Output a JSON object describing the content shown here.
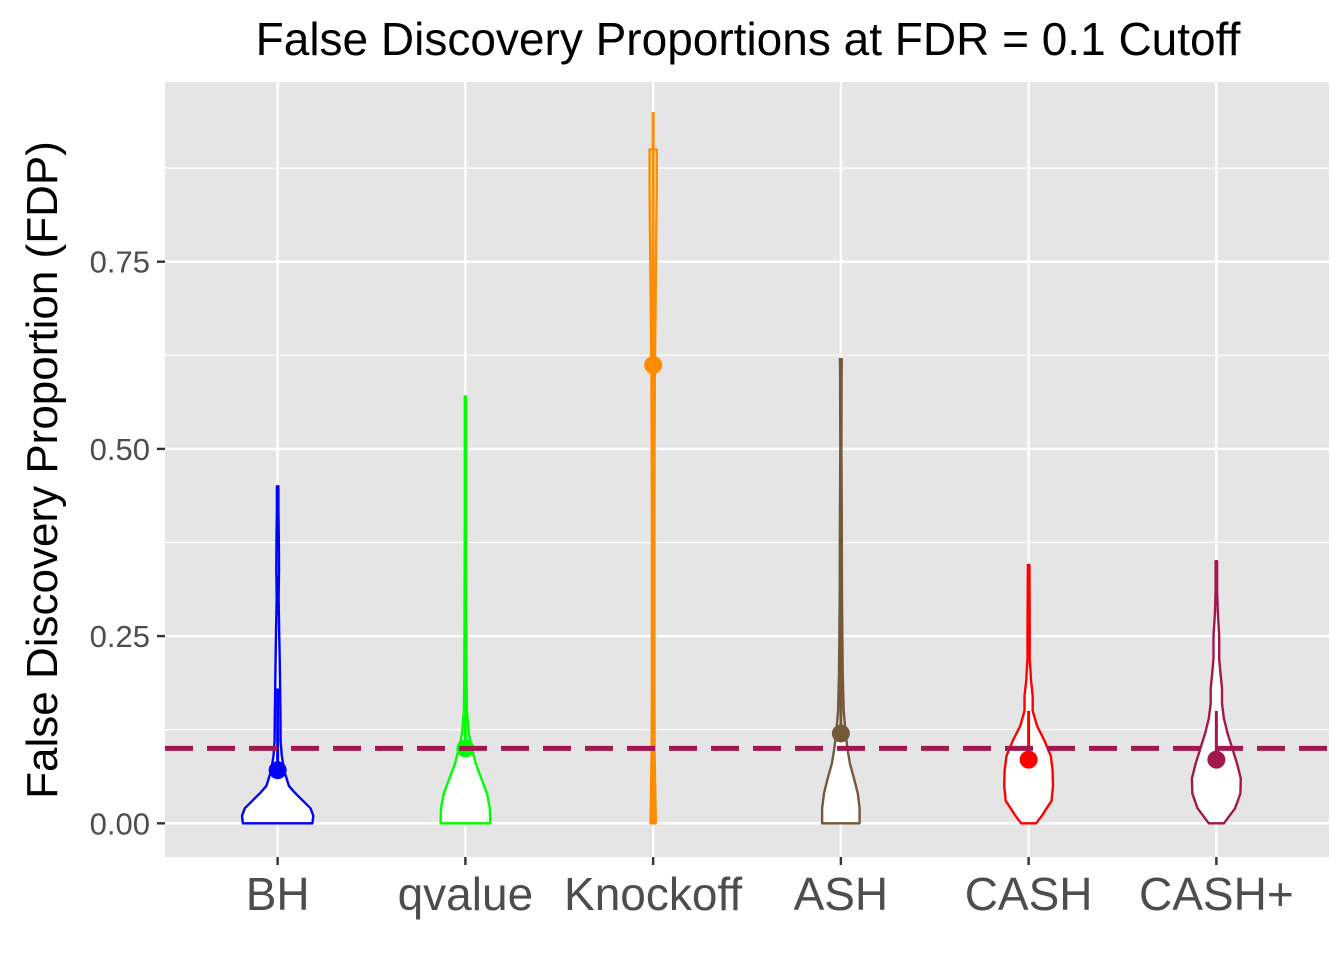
{
  "chart_data": {
    "type": "violin",
    "title": "False Discovery Proportions at FDR = 0.1 Cutoff",
    "xlabel": "",
    "ylabel": "False Discovery Proportion (FDP)",
    "ylim": [
      -0.045,
      0.99
    ],
    "yticks": [
      0.0,
      0.25,
      0.5,
      0.75
    ],
    "ytick_labels": [
      "0.00",
      "0.25",
      "0.50",
      "0.75"
    ],
    "grid": true,
    "legend": "none",
    "reference_line": {
      "y": 0.1,
      "style": "dashed",
      "color": "#a3174f"
    },
    "categories": [
      "BH",
      "qvalue",
      "Knockoff",
      "ASH",
      "CASH",
      "CASH+"
    ],
    "colors": {
      "BH": "#0000ff",
      "qvalue": "#00ff00",
      "Knockoff": "#ff8c00",
      "ASH": "#73593a",
      "CASH": "#ff0000",
      "CASH+": "#a3174f"
    },
    "series": [
      {
        "name": "BH",
        "mean": 0.071,
        "line_low": 0.071,
        "line_high": 0.18,
        "min": 0.0,
        "max": 0.45,
        "profile": [
          [
            0.0,
            0.185
          ],
          [
            0.01,
            0.19
          ],
          [
            0.02,
            0.175
          ],
          [
            0.03,
            0.135
          ],
          [
            0.04,
            0.095
          ],
          [
            0.05,
            0.06
          ],
          [
            0.07,
            0.035
          ],
          [
            0.09,
            0.022
          ],
          [
            0.11,
            0.016
          ],
          [
            0.14,
            0.015
          ],
          [
            0.18,
            0.013
          ],
          [
            0.22,
            0.011
          ],
          [
            0.26,
            0.008
          ],
          [
            0.3,
            0.005
          ],
          [
            0.34,
            0.007
          ],
          [
            0.38,
            0.006
          ],
          [
            0.42,
            0.004
          ],
          [
            0.45,
            0.004
          ]
        ]
      },
      {
        "name": "qvalue",
        "mean": 0.1,
        "line_low": 0.1,
        "line_high": 0.25,
        "min": 0.0,
        "max": 0.57,
        "profile": [
          [
            0.0,
            0.132
          ],
          [
            0.02,
            0.13
          ],
          [
            0.04,
            0.115
          ],
          [
            0.06,
            0.085
          ],
          [
            0.08,
            0.055
          ],
          [
            0.1,
            0.035
          ],
          [
            0.12,
            0.018
          ],
          [
            0.15,
            0.008
          ],
          [
            0.2,
            0.006
          ],
          [
            0.3,
            0.004
          ],
          [
            0.4,
            0.003
          ],
          [
            0.5,
            0.003
          ],
          [
            0.57,
            0.003
          ]
        ]
      },
      {
        "name": "Knockoff",
        "mean": 0.612,
        "line_low": 0.0,
        "line_high": 0.95,
        "min": 0.0,
        "max": 0.9,
        "profile": [
          [
            0.0,
            0.014
          ],
          [
            0.1,
            0.0075
          ],
          [
            0.2,
            0.0065
          ],
          [
            0.3,
            0.0065
          ],
          [
            0.4,
            0.0065
          ],
          [
            0.5,
            0.0075
          ],
          [
            0.6,
            0.009
          ],
          [
            0.7,
            0.013
          ],
          [
            0.8,
            0.017
          ],
          [
            0.85,
            0.019
          ],
          [
            0.88,
            0.019
          ],
          [
            0.9,
            0.019
          ]
        ]
      },
      {
        "name": "ASH",
        "mean": 0.12,
        "line_low": 0.12,
        "line_high": 0.295,
        "min": 0.0,
        "max": 0.62,
        "profile": [
          [
            0.0,
            0.1
          ],
          [
            0.02,
            0.1
          ],
          [
            0.04,
            0.09
          ],
          [
            0.06,
            0.07
          ],
          [
            0.08,
            0.048
          ],
          [
            0.1,
            0.035
          ],
          [
            0.12,
            0.025
          ],
          [
            0.15,
            0.015
          ],
          [
            0.2,
            0.01
          ],
          [
            0.3,
            0.006
          ],
          [
            0.4,
            0.005
          ],
          [
            0.5,
            0.003
          ],
          [
            0.6,
            0.004
          ],
          [
            0.62,
            0.005
          ]
        ]
      },
      {
        "name": "CASH",
        "mean": 0.085,
        "line_low": 0.085,
        "line_high": 0.15,
        "min": 0.0,
        "max": 0.345,
        "profile": [
          [
            0.0,
            0.04
          ],
          [
            0.01,
            0.07
          ],
          [
            0.03,
            0.122
          ],
          [
            0.05,
            0.13
          ],
          [
            0.07,
            0.128
          ],
          [
            0.09,
            0.118
          ],
          [
            0.11,
            0.085
          ],
          [
            0.13,
            0.045
          ],
          [
            0.15,
            0.022
          ],
          [
            0.17,
            0.022
          ],
          [
            0.19,
            0.013
          ],
          [
            0.22,
            0.006
          ],
          [
            0.26,
            0.006
          ],
          [
            0.3,
            0.005
          ],
          [
            0.345,
            0.004
          ]
        ]
      },
      {
        "name": "CASH+",
        "mean": 0.085,
        "line_low": 0.085,
        "line_high": 0.15,
        "min": 0.0,
        "max": 0.35,
        "profile": [
          [
            0.0,
            0.04
          ],
          [
            0.02,
            0.1
          ],
          [
            0.04,
            0.128
          ],
          [
            0.06,
            0.13
          ],
          [
            0.08,
            0.11
          ],
          [
            0.1,
            0.085
          ],
          [
            0.12,
            0.06
          ],
          [
            0.14,
            0.04
          ],
          [
            0.16,
            0.03
          ],
          [
            0.18,
            0.03
          ],
          [
            0.2,
            0.022
          ],
          [
            0.22,
            0.015
          ],
          [
            0.25,
            0.015
          ],
          [
            0.28,
            0.008
          ],
          [
            0.31,
            0.004
          ],
          [
            0.35,
            0.004
          ]
        ]
      }
    ]
  }
}
